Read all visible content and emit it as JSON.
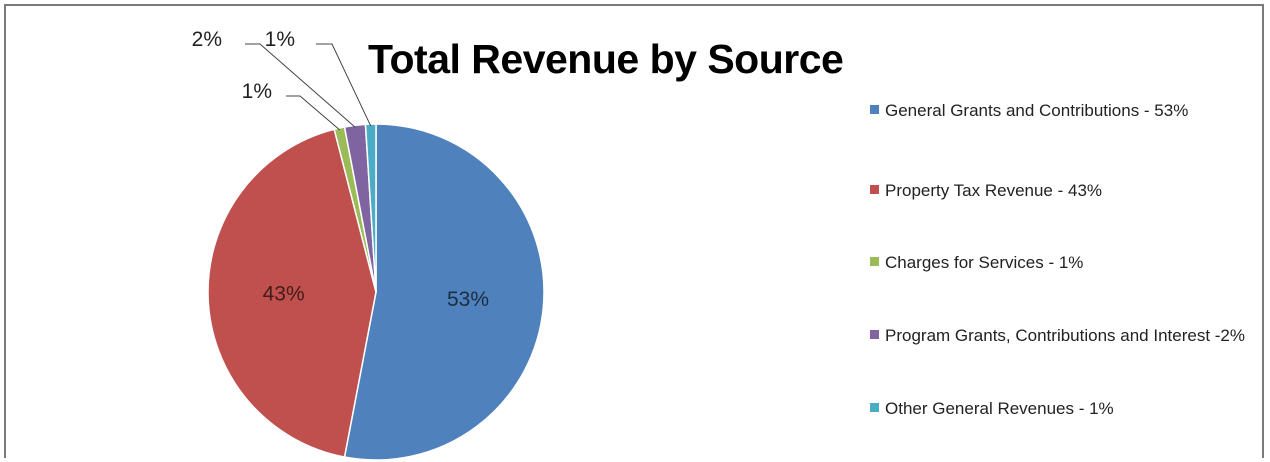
{
  "chart_data": {
    "type": "pie",
    "title": "Total Revenue by Source",
    "slices": [
      {
        "label": "General Grants and Contributions - 53%",
        "value": 53,
        "data_label": "53%",
        "color": "#4f81bd"
      },
      {
        "label": "Property Tax Revenue - 43%",
        "value": 43,
        "data_label": "43%",
        "color": "#c0504d"
      },
      {
        "label": "Charges for Services - 1%",
        "value": 1,
        "data_label": "1%",
        "color": "#9bbb59"
      },
      {
        "label": "Program Grants, Contributions and Interest -2%",
        "value": 2,
        "data_label": "2%",
        "color": "#8064a2"
      },
      {
        "label": "Other General Revenues - 1%",
        "value": 1,
        "data_label": "1%",
        "color": "#4bacc6"
      }
    ],
    "legend_position": "right"
  }
}
